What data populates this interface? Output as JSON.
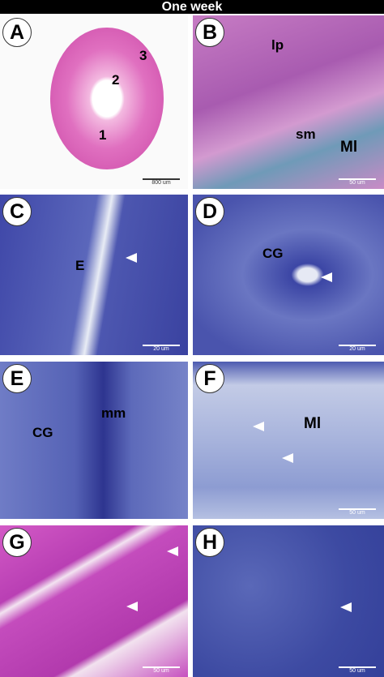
{
  "header": {
    "title": "One week"
  },
  "panels": [
    {
      "label": "A",
      "annotations": [
        "3",
        "2",
        "1"
      ],
      "scale_bar": "800 um"
    },
    {
      "label": "B",
      "annotations": [
        "lp",
        "sm",
        "Ml"
      ],
      "scale_bar": "50 um"
    },
    {
      "label": "C",
      "annotations": [
        "E"
      ],
      "scale_bar": "20 um"
    },
    {
      "label": "D",
      "annotations": [
        "CG"
      ],
      "scale_bar": "20 um"
    },
    {
      "label": "E",
      "annotations": [
        "CG",
        "mm"
      ]
    },
    {
      "label": "F",
      "annotations": [
        "Ml"
      ],
      "scale_bar": "50 um"
    },
    {
      "label": "G",
      "annotations": [],
      "scale_bar": "50 um"
    },
    {
      "label": "H",
      "annotations": [],
      "scale_bar": "50 um"
    }
  ]
}
